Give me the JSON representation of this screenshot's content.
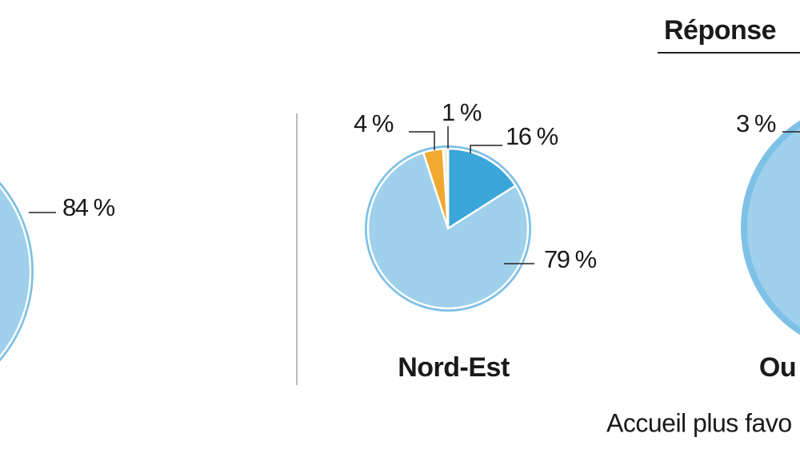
{
  "header": {
    "title": "Réponse"
  },
  "footer": {
    "text": "Accueil plus favo"
  },
  "chart_data": [
    {
      "type": "pie",
      "values": [
        84
      ],
      "value_labels": [
        "84 %"
      ],
      "colors": [
        "#9fd0ec"
      ]
    },
    {
      "type": "pie",
      "title": "Nord-Est",
      "values": [
        16,
        79,
        4,
        1
      ],
      "value_labels": [
        "16 %",
        "79 %",
        "4 %",
        "1 %"
      ],
      "colors": [
        "#3aa6da",
        "#9fd0ec",
        "#f0a830",
        "#f6efd6"
      ]
    },
    {
      "type": "pie",
      "title": "Ou",
      "values": [
        3
      ],
      "value_labels": [
        "3 %"
      ],
      "colors": [
        "#f0a830"
      ]
    }
  ]
}
